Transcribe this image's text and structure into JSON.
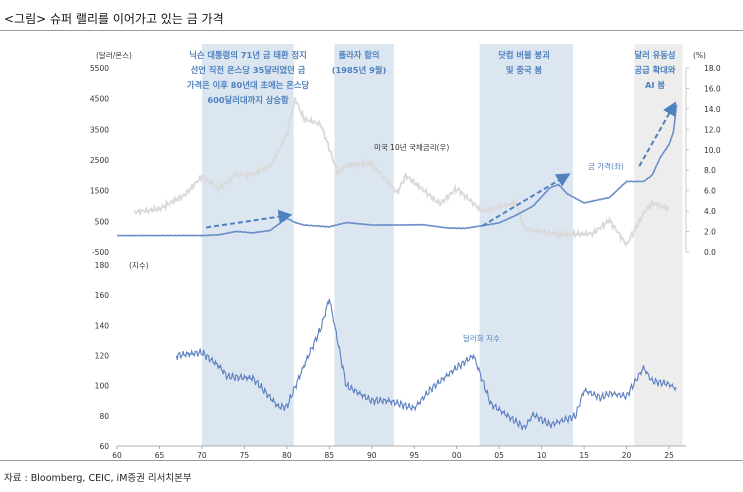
{
  "title": "<그림> 슈퍼 랠리를 이어가고 있는 금 가격",
  "source": "자료 : Bloomberg, CEIC, iM증권 리서치본부",
  "colors": {
    "gold": "#6b8dc8",
    "yield": "#d9d9d9",
    "dollar": "#5b7fc0",
    "shade_blue": "#dce6f1",
    "shade_gray": "#ededed",
    "annotation": "#4f81bd"
  },
  "chart_data": [
    {
      "type": "line",
      "x_ticks": [
        "60",
        "65",
        "70",
        "75",
        "80",
        "85",
        "90",
        "95",
        "00",
        "05",
        "10",
        "15",
        "20",
        "25"
      ],
      "left_axis": {
        "unit": "(달러/온스)",
        "ylim": [
          -500,
          5500
        ],
        "ticks": [
          "-500",
          "500",
          "1500",
          "2500",
          "3500",
          "4500",
          "5500"
        ]
      },
      "right_axis": {
        "unit": "(%)",
        "ylim": [
          0,
          18
        ],
        "ticks": [
          "0.0",
          "2.0",
          "4.0",
          "6.0",
          "8.0",
          "10.0",
          "12.0",
          "14.0",
          "16.0",
          "18.0"
        ]
      },
      "series": [
        {
          "name": "금 가격(좌)",
          "axis": "left",
          "x": [
            1960,
            1968,
            1970,
            1972,
            1974,
            1976,
            1978,
            1979,
            1980,
            1981,
            1982,
            1985,
            1987,
            1990,
            1993,
            1996,
            1999,
            2001,
            2003,
            2005,
            2007,
            2009,
            2011,
            2012,
            2013,
            2015,
            2018,
            2020,
            2022,
            2023,
            2024,
            2025,
            2025.5,
            2025.9
          ],
          "values": [
            35,
            38,
            36,
            60,
            170,
            125,
            200,
            400,
            600,
            460,
            380,
            320,
            460,
            380,
            380,
            390,
            280,
            270,
            360,
            450,
            700,
            1000,
            1600,
            1700,
            1400,
            1100,
            1280,
            1800,
            1800,
            2000,
            2600,
            3000,
            3400,
            4300
          ]
        },
        {
          "name": "미국 10년 국채금리(우)",
          "axis": "right",
          "x": [
            1962,
            1965,
            1968,
            1970,
            1972,
            1974,
            1976,
            1978,
            1980,
            1981,
            1982,
            1984,
            1986,
            1987,
            1990,
            1993,
            1994,
            1998,
            2000,
            2003,
            2007,
            2008,
            2012,
            2016,
            2018,
            2020,
            2022,
            2023,
            2025
          ],
          "values": [
            3.9,
            4.2,
            5.6,
            7.4,
            6.2,
            7.6,
            7.6,
            8.4,
            11.5,
            15.0,
            13.0,
            12.5,
            7.7,
            8.5,
            8.6,
            5.8,
            7.5,
            4.7,
            6.2,
            4.0,
            4.8,
            2.3,
            1.7,
            1.8,
            3.1,
            0.7,
            3.8,
            4.8,
            4.2
          ]
        },
        {
          "name": "달러화 지수",
          "axis": "left_bottom",
          "ylim": [
            60,
            180
          ],
          "ticks": [
            "60",
            "80",
            "100",
            "120",
            "140",
            "160",
            "180"
          ],
          "unit": "(지수)",
          "x": [
            1967,
            1970,
            1972,
            1973,
            1976,
            1979,
            1980,
            1982,
            1984,
            1985,
            1987,
            1990,
            1992,
            1995,
            1997,
            2000,
            2002,
            2004,
            2008,
            2009,
            2011,
            2014,
            2015,
            2017,
            2018,
            2020,
            2022,
            2023,
            2025,
            2025.8
          ],
          "values": [
            120,
            122,
            113,
            106,
            105,
            86,
            86,
            113,
            138,
            158,
            100,
            90,
            90,
            85,
            98,
            112,
            120,
            88,
            72,
            81,
            74,
            80,
            97,
            92,
            95,
            93,
            112,
            103,
            101,
            98
          ]
        }
      ],
      "series_labels": [
        "금 가격(좌)",
        "미국 10년 국채금리(우)",
        "달러화 지수"
      ],
      "shaded_periods": [
        {
          "from": 1970,
          "to": 1980.8,
          "lines": [
            "닉슨 대통령의 71년 금 태환 정지",
            "선언 직전 온스당 35달러였던 금",
            "가격은 이후 80년대 초에는 온스당",
            "600달러대까지 상승함"
          ]
        },
        {
          "from": 1985.6,
          "to": 1992.6,
          "lines": [
            "플라자 합의",
            "(1985년 9월)"
          ]
        },
        {
          "from": 2002.7,
          "to": 2013.7,
          "lines": [
            "닷컴 버블 붕괴",
            "및 중국 붐"
          ]
        },
        {
          "from": 2020.9,
          "to": 2026.6,
          "lines": [
            "달러 유동성",
            "공급 확대와",
            "AI 붐"
          ]
        }
      ]
    }
  ]
}
